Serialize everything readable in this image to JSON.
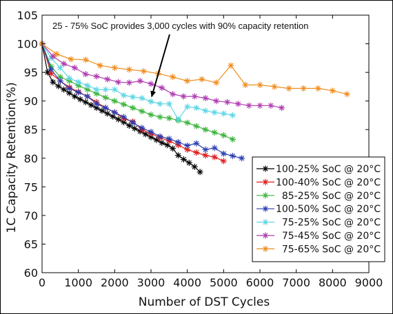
{
  "chart_data": {
    "type": "line",
    "title": "",
    "xlabel": "Number of DST Cycles",
    "ylabel": "1C Capacity Retention(%)",
    "xlim": [
      0,
      9000
    ],
    "ylim": [
      60,
      105
    ],
    "xticks": [
      "0",
      "1000",
      "2000",
      "3000",
      "4000",
      "5000",
      "6000",
      "7000",
      "8000",
      "9000"
    ],
    "yticks": [
      "60",
      "65",
      "70",
      "75",
      "80",
      "85",
      "90",
      "95",
      "100",
      "105"
    ],
    "grid": false,
    "legend_position": "lower-right",
    "annotation": {
      "text": "25 - 75% SoC provides 3,000 cycles with 90% capacity retention",
      "arrow_target": [
        3000,
        89.8
      ]
    },
    "series": [
      {
        "name": "100-25% SoC @ 20°C",
        "color": "#000000",
        "marker": "asterisk",
        "x": [
          0,
          150,
          300,
          450,
          600,
          750,
          900,
          1050,
          1200,
          1350,
          1500,
          1650,
          1800,
          1950,
          2100,
          2250,
          2400,
          2550,
          2700,
          2850,
          3000,
          3150,
          3300,
          3450,
          3600,
          3750,
          3900,
          4050,
          4200,
          4350
        ],
        "y": [
          100,
          95.0,
          93.3,
          92.6,
          92.0,
          91.4,
          90.8,
          90.3,
          89.8,
          89.3,
          88.8,
          88.3,
          87.8,
          87.3,
          86.8,
          86.3,
          85.7,
          85.2,
          84.7,
          84.2,
          83.7,
          83.2,
          82.7,
          82.3,
          81.7,
          80.5,
          79.8,
          79.2,
          78.5,
          77.6
        ]
      },
      {
        "name": "100-40% SoC @ 20°C",
        "color": "#e01b1b",
        "marker": "asterisk",
        "x": [
          0,
          250,
          500,
          750,
          1000,
          1250,
          1500,
          1750,
          2000,
          2250,
          2500,
          2750,
          3000,
          3250,
          3500,
          3750,
          4000,
          4250,
          4500,
          4750,
          5000
        ],
        "y": [
          100,
          94.8,
          93.5,
          92.4,
          91.6,
          90.8,
          89.8,
          88.8,
          88.0,
          86.9,
          86.4,
          85.0,
          84.3,
          83.6,
          83.0,
          82.3,
          81.5,
          81.0,
          80.5,
          80.2,
          79.5
        ]
      },
      {
        "name": "85-25% SoC @ 20°C",
        "color": "#3cb43c",
        "marker": "asterisk",
        "x": [
          0,
          250,
          500,
          750,
          1000,
          1250,
          1500,
          1750,
          2000,
          2250,
          2500,
          2750,
          3000,
          3250,
          3500,
          3750,
          4000,
          4250,
          4500,
          4750,
          5000,
          5250
        ],
        "y": [
          100,
          96.0,
          94.2,
          93.5,
          92.7,
          92.0,
          91.3,
          90.6,
          90.0,
          89.4,
          88.8,
          88.2,
          87.6,
          87.2,
          87.0,
          86.6,
          86.2,
          85.6,
          85.0,
          84.5,
          84.0,
          83.3
        ]
      },
      {
        "name": "100-50% SoC @ 20°C",
        "color": "#2a3eb0",
        "marker": "asterisk",
        "x": [
          0,
          250,
          500,
          750,
          1000,
          1250,
          1500,
          1750,
          2000,
          2250,
          2500,
          2750,
          3000,
          3250,
          3500,
          3750,
          4000,
          4250,
          4500,
          4750,
          5000,
          5250,
          5500
        ],
        "y": [
          100,
          95.5,
          93.5,
          92.2,
          91.5,
          90.8,
          89.5,
          88.8,
          88.0,
          87.2,
          86.2,
          85.3,
          84.6,
          83.8,
          83.4,
          82.8,
          82.2,
          82.6,
          81.5,
          81.8,
          80.8,
          80.4,
          80.0
        ]
      },
      {
        "name": "75-25% SoC @ 20°C",
        "color": "#5cd6e6",
        "marker": "asterisk",
        "x": [
          0,
          250,
          500,
          750,
          1000,
          1250,
          1500,
          1750,
          2000,
          2250,
          2500,
          2750,
          3000,
          3250,
          3500,
          3750,
          4000,
          4250,
          4500,
          4750,
          5000,
          5250
        ],
        "y": [
          100,
          97.5,
          95.8,
          94.0,
          93.3,
          92.7,
          92.0,
          92.0,
          92.0,
          91.0,
          90.7,
          90.5,
          89.9,
          89.5,
          89.5,
          86.8,
          89.0,
          88.8,
          88.3,
          88.0,
          87.8,
          87.5
        ]
      },
      {
        "name": "75-45% SoC @ 20°C",
        "color": "#b03ab0",
        "marker": "asterisk",
        "x": [
          0,
          300,
          600,
          900,
          1200,
          1500,
          1800,
          2100,
          2400,
          2700,
          3000,
          3300,
          3600,
          3900,
          4200,
          4500,
          4800,
          5100,
          5400,
          5700,
          6000,
          6300,
          6600
        ],
        "y": [
          100,
          97.8,
          96.5,
          95.8,
          94.7,
          94.3,
          93.8,
          93.3,
          93.2,
          93.5,
          93.0,
          92.3,
          91.2,
          90.8,
          90.8,
          90.5,
          90.0,
          89.8,
          89.5,
          89.2,
          89.2,
          89.2,
          88.8
        ]
      },
      {
        "name": "75-65% SoC @ 20°C",
        "color": "#f08c1e",
        "marker": "asterisk",
        "x": [
          0,
          400,
          800,
          1200,
          1600,
          2000,
          2400,
          2800,
          3200,
          3600,
          4000,
          4400,
          4800,
          5200,
          5600,
          6000,
          6400,
          6800,
          7200,
          7600,
          8000,
          8400
        ],
        "y": [
          100,
          98.2,
          97.3,
          97.2,
          96.2,
          95.8,
          95.5,
          95.2,
          94.8,
          94.2,
          93.5,
          93.8,
          93.2,
          96.2,
          92.8,
          92.8,
          92.5,
          92.2,
          92.2,
          92.2,
          91.8,
          91.2
        ]
      }
    ]
  }
}
